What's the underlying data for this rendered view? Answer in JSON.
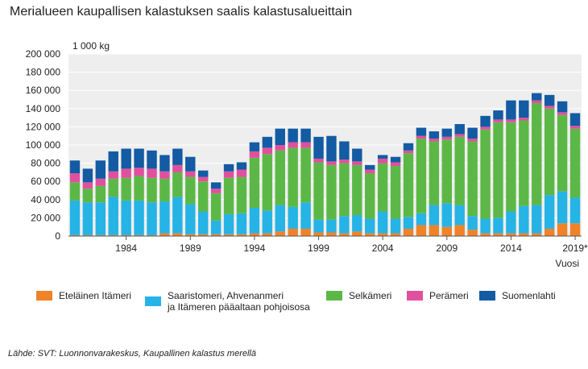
{
  "title": "Merialueen kaupallisen kalastuksen saalis kalastusalueittain",
  "source": "Lähde: SVT: Luonnonvarakeskus, Kaupallinen kalastus merellä",
  "chart_data": {
    "type": "bar",
    "stacked": true,
    "title": "Merialueen kaupallisen kalastuksen saalis kalastusalueittain",
    "ylabel": "1 000 kg",
    "xlabel": "Vuosi",
    "ylim": [
      0,
      200000
    ],
    "yticks": [
      "0",
      "20 000",
      "40 000",
      "60 000",
      "80 000",
      "100 000",
      "120 000",
      "140 000",
      "160 000",
      "180 000",
      "200 000"
    ],
    "xtick_labels": [
      "1984",
      "1989",
      "1994",
      "1999",
      "2004",
      "2009",
      "2014",
      "2019*"
    ],
    "grid": "horizontal",
    "legend_position": "bottom",
    "categories": [
      "1980",
      "1981",
      "1982",
      "1983",
      "1984",
      "1985",
      "1986",
      "1987",
      "1988",
      "1989",
      "1990",
      "1991",
      "1992",
      "1993",
      "1994",
      "1995",
      "1996",
      "1997",
      "1998",
      "1999",
      "2000",
      "2001",
      "2002",
      "2003",
      "2004",
      "2005",
      "2006",
      "2007",
      "2008",
      "2009",
      "2010",
      "2011",
      "2012",
      "2013",
      "2014",
      "2015",
      "2016",
      "2017",
      "2018",
      "2019"
    ],
    "series": [
      {
        "name": "Eteläinen Itämeri",
        "color": "#f08228",
        "values": [
          1000,
          1000,
          1000,
          1000,
          1000,
          1000,
          1000,
          3000,
          3000,
          2000,
          2000,
          2000,
          2000,
          2000,
          3000,
          3000,
          5000,
          8000,
          8000,
          4000,
          4000,
          3000,
          5000,
          3000,
          3000,
          3000,
          8000,
          12000,
          12000,
          10000,
          12000,
          7000,
          3000,
          3000,
          3000,
          3000,
          3000,
          8000,
          14000,
          14000
        ]
      },
      {
        "name": "Saaristomeri, Ahvenanmeri ja Itämeren pääaltaan pohjoisosa",
        "color": "#26b3e6",
        "values": [
          38000,
          36000,
          36000,
          42000,
          38000,
          38000,
          36000,
          35000,
          40000,
          33000,
          25000,
          15000,
          22000,
          23000,
          28000,
          25000,
          29000,
          24000,
          29000,
          14000,
          14000,
          19000,
          18000,
          16000,
          24000,
          16000,
          13000,
          13000,
          22000,
          26000,
          22000,
          15000,
          16000,
          17000,
          24000,
          30000,
          31000,
          37000,
          35000,
          28000
        ]
      },
      {
        "name": "Selkämeri",
        "color": "#5cb846",
        "values": [
          20000,
          15000,
          18000,
          20000,
          25000,
          27000,
          27000,
          25000,
          27000,
          30000,
          33000,
          30000,
          40000,
          40000,
          55000,
          62000,
          60000,
          65000,
          60000,
          63000,
          60000,
          58000,
          55000,
          50000,
          53000,
          58000,
          70000,
          82000,
          70000,
          70000,
          75000,
          82000,
          98000,
          105000,
          98000,
          94000,
          112000,
          95000,
          84000,
          76000
        ]
      },
      {
        "name": "Perämeri",
        "color": "#e0509e",
        "values": [
          10000,
          7000,
          8000,
          8000,
          10000,
          9000,
          10000,
          8000,
          8000,
          6000,
          5000,
          5000,
          7000,
          8000,
          7000,
          7000,
          6000,
          6000,
          6000,
          4000,
          4000,
          4000,
          4000,
          4000,
          5000,
          4000,
          3000,
          3000,
          3000,
          3000,
          3000,
          3000,
          3000,
          3000,
          3000,
          3000,
          3000,
          3000,
          3000,
          3000
        ]
      },
      {
        "name": "Suomenlahti",
        "color": "#135ba3",
        "values": [
          14000,
          15000,
          20000,
          22000,
          22000,
          21000,
          20000,
          18000,
          18000,
          16000,
          7000,
          7000,
          8000,
          8000,
          10000,
          12000,
          18000,
          15000,
          15000,
          24000,
          28000,
          20000,
          14000,
          5000,
          4000,
          6000,
          8000,
          9000,
          8000,
          9000,
          11000,
          12000,
          12000,
          10000,
          21000,
          19000,
          8000,
          12000,
          12000,
          14000
        ]
      }
    ]
  }
}
